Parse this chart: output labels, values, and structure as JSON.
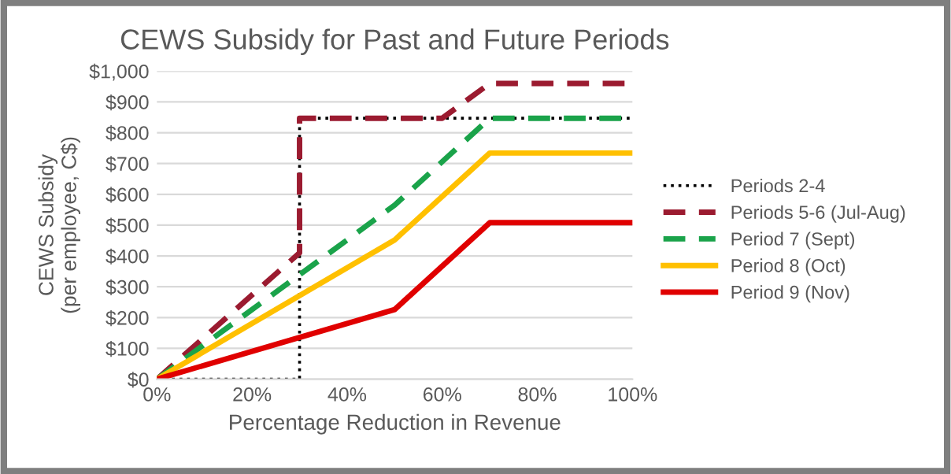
{
  "chart_data": {
    "type": "line",
    "title": "CEWS Subsidy for Past and Future Periods",
    "xlabel": "Percentage Reduction in Revenue",
    "ylabel": "CEWS Subsidy\n(per employee, C$)",
    "series": [
      {
        "name": "Periods 2-4",
        "color": "#000000",
        "line_style": "dotted",
        "x": [
          0,
          30,
          30,
          100
        ],
        "values": [
          0,
          0,
          847,
          847
        ]
      },
      {
        "name": "Periods 5-6 (Jul-Aug)",
        "color": "#9b1b30",
        "line_style": "dashed",
        "x": [
          0,
          30,
          30,
          60,
          70,
          100
        ],
        "values": [
          0,
          410,
          847,
          847,
          960,
          960
        ]
      },
      {
        "name": "Period 7 (Sept)",
        "color": "#1aa34a",
        "line_style": "dashed",
        "x": [
          0,
          50,
          70,
          100
        ],
        "values": [
          0,
          565,
          847,
          847
        ]
      },
      {
        "name": "Period 8 (Oct)",
        "color": "#ffc000",
        "line_style": "solid",
        "x": [
          0,
          50,
          70,
          100
        ],
        "values": [
          0,
          452,
          734,
          734
        ]
      },
      {
        "name": "Period 9 (Nov)",
        "color": "#e00000",
        "line_style": "solid",
        "x": [
          0,
          50,
          70,
          100
        ],
        "values": [
          0,
          226,
          508,
          508
        ]
      }
    ],
    "xlim": [
      0,
      100
    ],
    "xticks": [
      {
        "value": 0,
        "label": "0%"
      },
      {
        "value": 20,
        "label": "20%"
      },
      {
        "value": 40,
        "label": "40%"
      },
      {
        "value": 60,
        "label": "60%"
      },
      {
        "value": 80,
        "label": "80%"
      },
      {
        "value": 100,
        "label": "100%"
      }
    ],
    "ylim": [
      0,
      1000
    ],
    "yticks": [
      {
        "value": 0,
        "label": "$0"
      },
      {
        "value": 100,
        "label": "$100"
      },
      {
        "value": 200,
        "label": "$200"
      },
      {
        "value": 300,
        "label": "$300"
      },
      {
        "value": 400,
        "label": "$400"
      },
      {
        "value": 500,
        "label": "$500"
      },
      {
        "value": 600,
        "label": "$600"
      },
      {
        "value": 700,
        "label": "$700"
      },
      {
        "value": 800,
        "label": "$800"
      },
      {
        "value": 900,
        "label": "$900"
      },
      {
        "value": 1000,
        "label": "$1,000"
      }
    ],
    "grid": "y",
    "legend": "right",
    "marker": "none"
  }
}
